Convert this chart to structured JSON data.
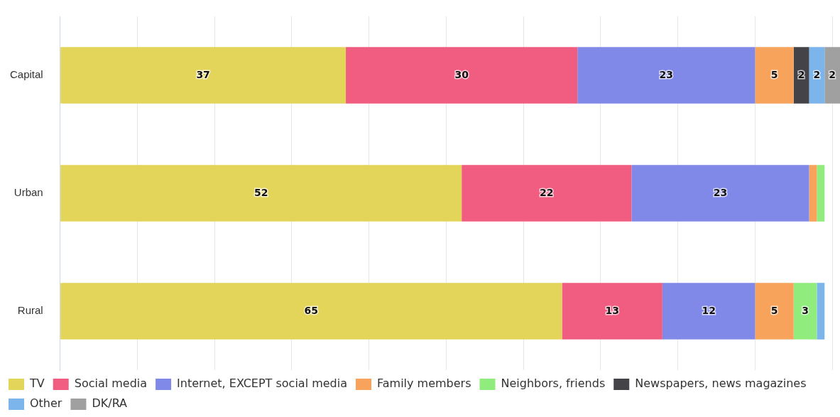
{
  "chart_data": {
    "type": "bar",
    "orientation": "horizontal",
    "stacked": true,
    "categories": [
      "Capital",
      "Urban",
      "Rural"
    ],
    "xlim": [
      0,
      101
    ],
    "xticks": [
      {
        "value": 0,
        "label": null
      },
      {
        "value": 10,
        "label": null
      },
      {
        "value": 20,
        "label": null
      },
      {
        "value": 30,
        "label": null
      },
      {
        "value": 40,
        "label": null
      },
      {
        "value": 50,
        "label": null
      },
      {
        "value": 60,
        "label": null
      },
      {
        "value": 70,
        "label": null
      },
      {
        "value": 80,
        "label": null
      },
      {
        "value": 90,
        "label": null
      },
      {
        "value": 100,
        "label": null
      }
    ],
    "tick_labels": "y",
    "grid": "x",
    "legend": "bottom",
    "series": [
      {
        "name": "TV",
        "color": "#e3d45a",
        "values": [
          37,
          52,
          65
        ],
        "value_labels": [
          "37",
          "52",
          "65"
        ]
      },
      {
        "name": "Social media",
        "color": "#f15d80",
        "values": [
          30,
          22,
          13
        ],
        "value_labels": [
          "30",
          "22",
          "13"
        ]
      },
      {
        "name": "Internet, EXCEPT social media",
        "color": "#8088e8",
        "values": [
          23,
          23,
          12
        ],
        "value_labels": [
          "23",
          "23",
          "12"
        ]
      },
      {
        "name": "Family members",
        "color": "#f7a35c",
        "values": [
          5,
          1,
          5
        ],
        "value_labels": [
          "5",
          null,
          "5"
        ]
      },
      {
        "name": "Neighbors, friends",
        "color": "#90ed7d",
        "values": [
          null,
          1,
          3
        ],
        "value_labels": [
          null,
          null,
          "3"
        ]
      },
      {
        "name": "Newspapers, news magazines",
        "color": "#434348",
        "values": [
          2,
          null,
          null
        ],
        "value_labels": [
          "2",
          null,
          null
        ]
      },
      {
        "name": "Other",
        "color": "#7cb5ec",
        "values": [
          2,
          null,
          1
        ],
        "value_labels": [
          "2",
          null,
          null
        ]
      },
      {
        "name": "DK/RA",
        "color": "#a0a0a0",
        "values": [
          2,
          null,
          null
        ],
        "value_labels": [
          "2",
          null,
          null
        ]
      }
    ]
  }
}
